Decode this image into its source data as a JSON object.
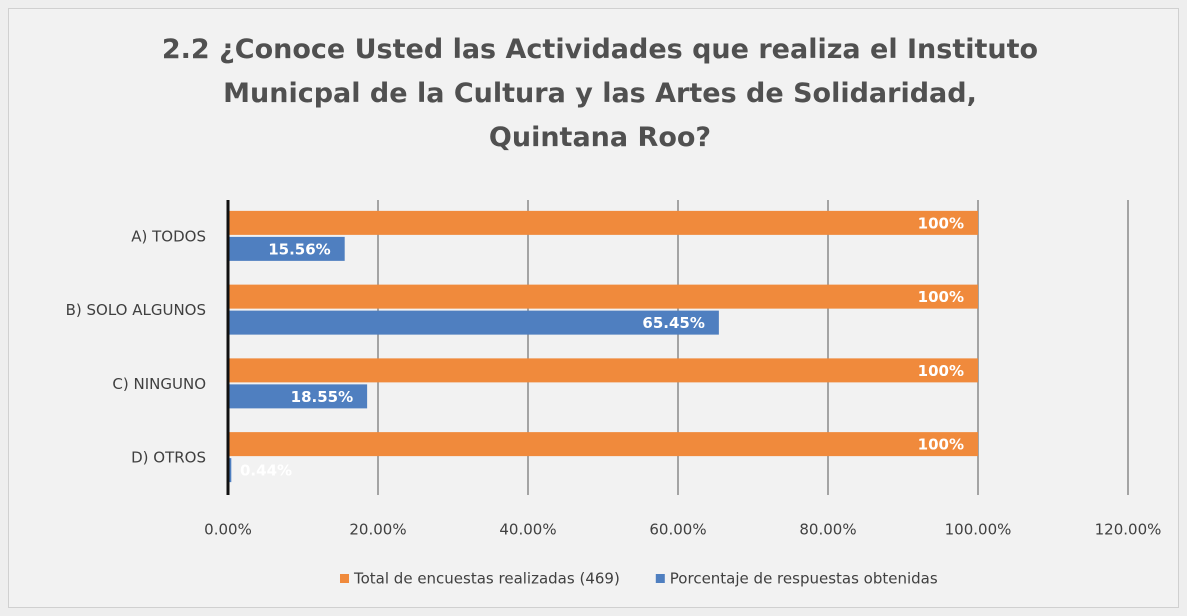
{
  "chart_data": {
    "type": "bar",
    "orientation": "horizontal",
    "title": "2.2 ¿Conoce Usted las Actividades que realiza el Instituto Municpal de la Cultura y las Artes de Solidaridad, Quintana Roo?",
    "categories": [
      "A) TODOS",
      "B) SOLO ALGUNOS",
      "C) NINGUNO",
      "D) OTROS"
    ],
    "series": [
      {
        "name": "Total de encuestas realizadas (469)",
        "color": "#f08a3c",
        "values": [
          100,
          100,
          100,
          100
        ],
        "value_labels": [
          "100%",
          "100%",
          "100%",
          "100%"
        ]
      },
      {
        "name": "Porcentaje de respuestas obtenidas",
        "color": "#4f7fc0",
        "values": [
          15.56,
          65.45,
          18.55,
          0.44
        ],
        "value_labels": [
          "15.56%",
          "65.45%",
          "18.55%",
          "0.44%"
        ]
      }
    ],
    "xlim": [
      0,
      120
    ],
    "xticks": [
      {
        "value": 0,
        "label": "0.00%"
      },
      {
        "value": 20,
        "label": "20.00%"
      },
      {
        "value": 40,
        "label": "40.00%"
      },
      {
        "value": 60,
        "label": "60.00%"
      },
      {
        "value": 80,
        "label": "80.00%"
      },
      {
        "value": 100,
        "label": "100.00%"
      },
      {
        "value": 120,
        "label": "120.00%"
      }
    ],
    "grid": true,
    "legend": "bottom"
  }
}
